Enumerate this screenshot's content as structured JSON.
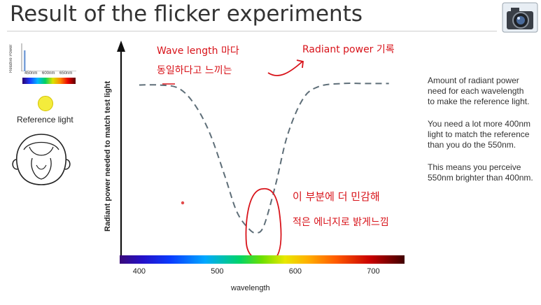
{
  "title": "Result of the flicker experiments",
  "ref_panel": {
    "spectrum_ylabel": "Relative Power",
    "spectrum_ticks": [
      "450nm",
      "600nm",
      "650nm"
    ],
    "ref_label": "Reference light"
  },
  "chart_data": {
    "type": "line",
    "title": "",
    "xlabel": "wavelength",
    "ylabel": "Radiant power needed to match test light",
    "x_ticks": [
      "400",
      "500",
      "600",
      "700"
    ],
    "xlim": [
      375,
      740
    ],
    "line_style": "dashed",
    "line_color": "#5e6e78",
    "series": [
      {
        "x": [
          400,
          425,
          450,
          470,
          490,
          510,
          525,
          540,
          550,
          560,
          575,
          590,
          610,
          630,
          660,
          690,
          720
        ],
        "y": [
          0.97,
          0.97,
          0.95,
          0.85,
          0.66,
          0.37,
          0.14,
          0.03,
          0.0,
          0.05,
          0.32,
          0.64,
          0.88,
          0.96,
          0.98,
          0.98,
          0.98
        ]
      }
    ]
  },
  "notes": [
    "Amount of radiant power need for each wavelength\nto make the reference light.",
    "You need a lot more 400nm light to match the reference than  you do the 550nm.",
    "This means you perceive 550nm brighter than 400nm."
  ],
  "annotations": {
    "top_left_1": "Wave length 마다",
    "top_left_2": "동일하다고 느끼는",
    "top_right": "Radiant power 기록",
    "bottom_1": "이 부분에 더 민감해",
    "bottom_2": "적은 에너지로 밝게느낌"
  },
  "colors": {
    "annotation": "#d8131a",
    "curve": "#5e6e78",
    "reference": "#f4ec3c"
  }
}
